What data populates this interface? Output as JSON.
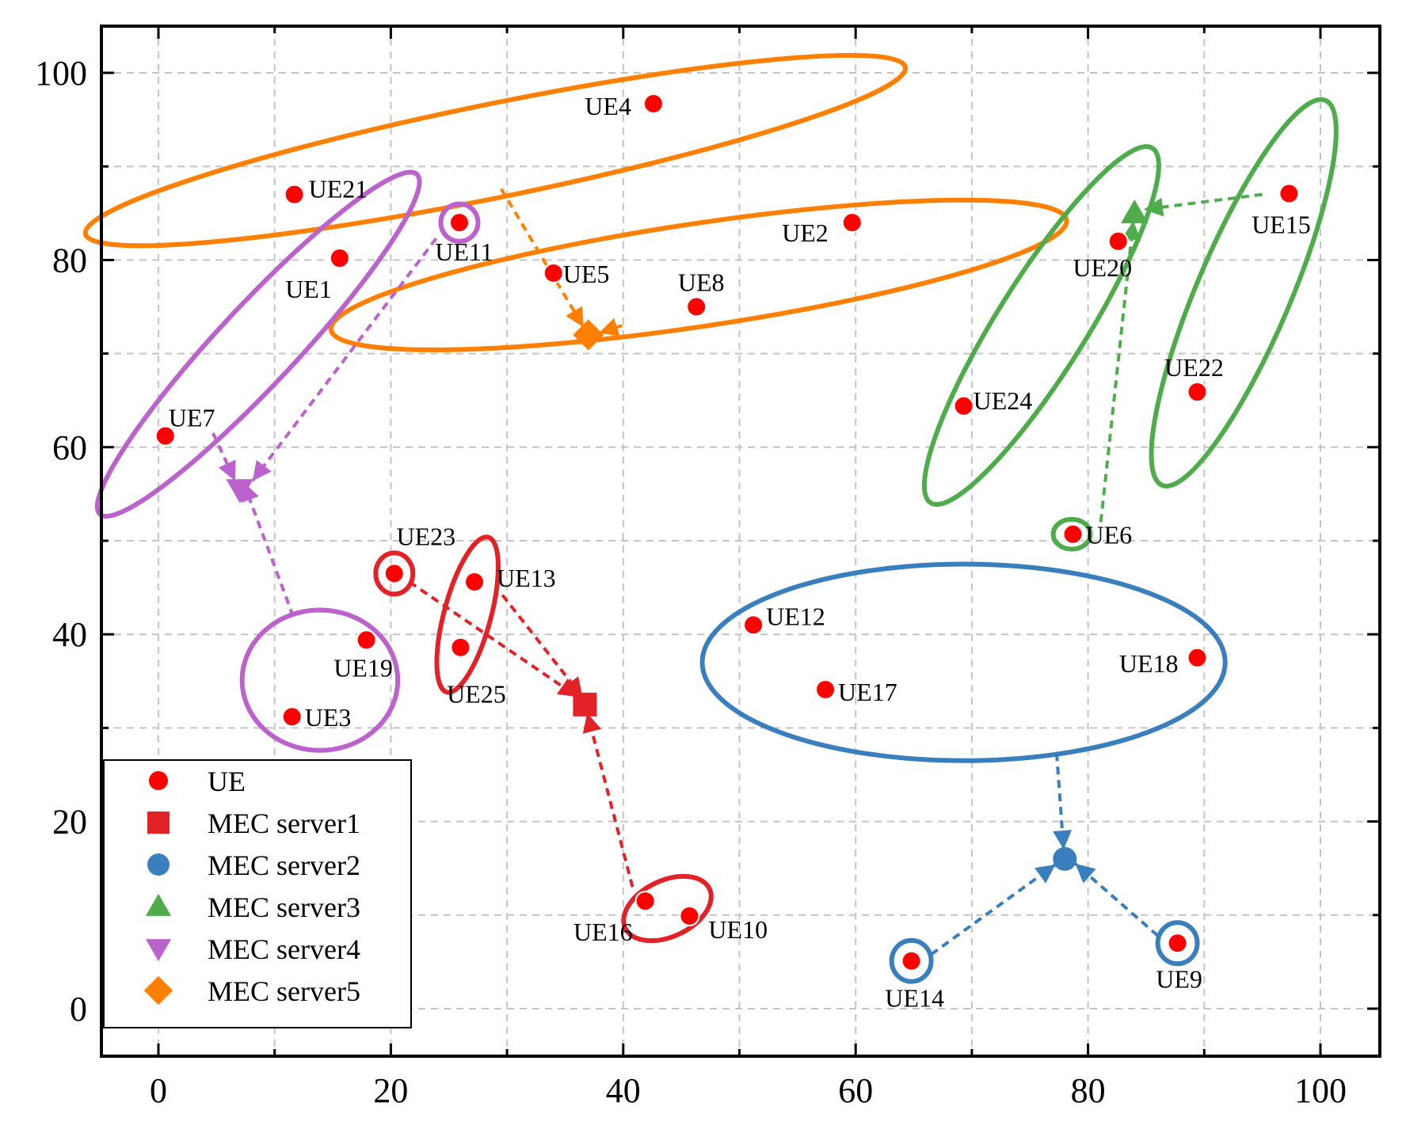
{
  "chart_data": {
    "type": "scatter",
    "title": "",
    "xlabel": "",
    "ylabel": "",
    "xlim": [
      -5,
      105
    ],
    "ylim": [
      -5,
      105
    ],
    "xticks": [
      0,
      20,
      40,
      60,
      80,
      100
    ],
    "yticks": [
      0,
      20,
      40,
      60,
      80,
      100
    ],
    "grid": true,
    "legend_position": "bottom-left",
    "colors": {
      "ue": "#ff0000",
      "server1": "#e32228",
      "server2": "#3a7fbd",
      "server3": "#4ead4a",
      "server4": "#bb62cc",
      "server5": "#ff8000"
    },
    "legend": [
      {
        "label": "UE",
        "marker": "circle",
        "color": "#ff0000"
      },
      {
        "label": "MEC server1",
        "marker": "square",
        "color": "#e32228"
      },
      {
        "label": "MEC server2",
        "marker": "circle",
        "color": "#3a7fbd"
      },
      {
        "label": "MEC server3",
        "marker": "triangle-up",
        "color": "#4ead4a"
      },
      {
        "label": "MEC server4",
        "marker": "triangle-down",
        "color": "#bb62cc"
      },
      {
        "label": "MEC server5",
        "marker": "diamond",
        "color": "#ff8000"
      }
    ],
    "ues": [
      {
        "name": "UE1",
        "x": 15.6,
        "y": 80.2,
        "server": 4
      },
      {
        "name": "UE2",
        "x": 59.7,
        "y": 84.0,
        "server": 5
      },
      {
        "name": "UE3",
        "x": 11.5,
        "y": 31.2,
        "server": 4
      },
      {
        "name": "UE4",
        "x": 42.6,
        "y": 96.7,
        "server": 5
      },
      {
        "name": "UE5",
        "x": 34.0,
        "y": 78.6,
        "server": 5
      },
      {
        "name": "UE6",
        "x": 78.7,
        "y": 50.7,
        "server": 3
      },
      {
        "name": "UE7",
        "x": 0.6,
        "y": 61.2,
        "server": 4
      },
      {
        "name": "UE8",
        "x": 46.3,
        "y": 75.0,
        "server": 5
      },
      {
        "name": "UE9",
        "x": 87.7,
        "y": 7.0,
        "server": 2
      },
      {
        "name": "UE10",
        "x": 45.7,
        "y": 9.9,
        "server": 1
      },
      {
        "name": "UE11",
        "x": 25.9,
        "y": 84.0,
        "server": 4
      },
      {
        "name": "UE12",
        "x": 51.2,
        "y": 41.0,
        "server": 2
      },
      {
        "name": "UE13",
        "x": 27.2,
        "y": 45.6,
        "server": 1
      },
      {
        "name": "UE14",
        "x": 64.8,
        "y": 5.1,
        "server": 2
      },
      {
        "name": "UE15",
        "x": 97.3,
        "y": 87.1,
        "server": 3
      },
      {
        "name": "UE16",
        "x": 41.9,
        "y": 11.5,
        "server": 1
      },
      {
        "name": "UE17",
        "x": 57.4,
        "y": 34.1,
        "server": 2
      },
      {
        "name": "UE18",
        "x": 89.4,
        "y": 37.5,
        "server": 2
      },
      {
        "name": "UE19",
        "x": 17.9,
        "y": 39.4,
        "server": 4
      },
      {
        "name": "UE20",
        "x": 82.6,
        "y": 82.0,
        "server": 3
      },
      {
        "name": "UE21",
        "x": 11.7,
        "y": 87.0,
        "server": 5
      },
      {
        "name": "UE22",
        "x": 89.4,
        "y": 65.9,
        "server": 3
      },
      {
        "name": "UE23",
        "x": 20.3,
        "y": 46.5,
        "server": 1
      },
      {
        "name": "UE24",
        "x": 69.3,
        "y": 64.4,
        "server": 3
      },
      {
        "name": "UE25",
        "x": 26.0,
        "y": 38.6,
        "server": 1
      }
    ],
    "servers": [
      {
        "id": 1,
        "label": "MEC server1",
        "x": 36.7,
        "y": 32.5,
        "marker": "square"
      },
      {
        "id": 2,
        "label": "MEC server2",
        "x": 78.0,
        "y": 16.0,
        "marker": "circle"
      },
      {
        "id": 3,
        "label": "MEC server3",
        "x": 84.0,
        "y": 85.0,
        "marker": "triangle-up"
      },
      {
        "id": 4,
        "label": "MEC server4",
        "x": 7.0,
        "y": 55.5,
        "marker": "triangle-down"
      },
      {
        "id": 5,
        "label": "MEC server5",
        "x": 37.0,
        "y": 72.0,
        "marker": "diamond"
      }
    ],
    "clusters": [
      {
        "server": 5,
        "members": [
          "UE21",
          "UE4"
        ],
        "cx": 29.0,
        "cy": 91.7,
        "rx": 36.0,
        "ry": 5.0,
        "angle": 11.5
      },
      {
        "server": 5,
        "members": [
          "UE5",
          "UE8",
          "UE2"
        ],
        "cx": 46.5,
        "cy": 78.4,
        "rx": 32.0,
        "ry": 5.5,
        "angle": 8.5
      },
      {
        "server": 4,
        "members": [
          "UE11"
        ],
        "cx": 25.9,
        "cy": 84.0,
        "rx": 1.6,
        "ry": 2.0,
        "angle": 0
      },
      {
        "server": 4,
        "members": [
          "UE1",
          "UE7"
        ],
        "cx": 8.6,
        "cy": 71.0,
        "rx": 20.0,
        "ry": 4.2,
        "angle": 47
      },
      {
        "server": 4,
        "members": [
          "UE19",
          "UE3"
        ],
        "cx": 13.9,
        "cy": 35.1,
        "rx": 6.7,
        "ry": 7.5,
        "angle": 0
      },
      {
        "server": 1,
        "members": [
          "UE23"
        ],
        "cx": 20.3,
        "cy": 46.5,
        "rx": 1.6,
        "ry": 2.2,
        "angle": 0
      },
      {
        "server": 1,
        "members": [
          "UE13",
          "UE25"
        ],
        "cx": 26.6,
        "cy": 42.1,
        "rx": 6.9,
        "ry": 2.5,
        "angle": 75
      },
      {
        "server": 1,
        "members": [
          "UE16",
          "UE10"
        ],
        "cx": 43.8,
        "cy": 10.7,
        "rx": 4.0,
        "ry": 3.0,
        "angle": 25
      },
      {
        "server": 2,
        "members": [
          "UE12",
          "UE17",
          "UE18"
        ],
        "cx": 69.3,
        "cy": 37.0,
        "rx": 22.5,
        "ry": 10.5,
        "angle": 0
      },
      {
        "server": 2,
        "members": [
          "UE14"
        ],
        "cx": 64.8,
        "cy": 5.1,
        "rx": 1.7,
        "ry": 2.2,
        "angle": 0
      },
      {
        "server": 2,
        "members": [
          "UE9"
        ],
        "cx": 87.7,
        "cy": 7.0,
        "rx": 1.7,
        "ry": 2.2,
        "angle": 0
      },
      {
        "server": 3,
        "members": [
          "UE20",
          "UE24"
        ],
        "cx": 76.0,
        "cy": 73.0,
        "rx": 18.0,
        "ry": 4.8,
        "angle": 58
      },
      {
        "server": 3,
        "members": [
          "UE15",
          "UE22"
        ],
        "cx": 93.4,
        "cy": 76.5,
        "rx": 18.0,
        "ry": 5.0,
        "angle": 67
      },
      {
        "server": 3,
        "members": [
          "UE6"
        ],
        "cx": 78.6,
        "cy": 50.7,
        "rx": 1.6,
        "ry": 1.6,
        "angle": 0
      }
    ],
    "links": [
      {
        "server": 5,
        "from": [
          29.5,
          87.6
        ],
        "to": [
          36.6,
          72.8
        ]
      },
      {
        "server": 5,
        "from": [
          39.9,
          73.0
        ],
        "to": [
          37.9,
          72.2
        ]
      },
      {
        "server": 4,
        "from": [
          23.9,
          82.3
        ],
        "to": [
          8.1,
          56.4
        ]
      },
      {
        "server": 4,
        "from": [
          4.7,
          61.5
        ],
        "to": [
          6.6,
          56.4
        ]
      },
      {
        "server": 4,
        "from": [
          11.6,
          41.9
        ],
        "to": [
          7.3,
          56.3
        ]
      },
      {
        "server": 1,
        "from": [
          21.6,
          45.6
        ],
        "to": [
          36.1,
          33.3
        ]
      },
      {
        "server": 1,
        "from": [
          29.6,
          44.2
        ],
        "to": [
          36.5,
          33.3
        ]
      },
      {
        "server": 1,
        "from": [
          40.8,
          13.0
        ],
        "to": [
          36.9,
          31.6
        ]
      },
      {
        "server": 2,
        "from": [
          77.3,
          27.3
        ],
        "to": [
          77.9,
          17.0
        ]
      },
      {
        "server": 2,
        "from": [
          66.5,
          5.8
        ],
        "to": [
          77.2,
          15.4
        ]
      },
      {
        "server": 2,
        "from": [
          86.0,
          7.8
        ],
        "to": [
          78.9,
          15.5
        ]
      },
      {
        "server": 3,
        "from": [
          81.1,
          52.0
        ],
        "to": [
          83.9,
          84.2
        ]
      },
      {
        "server": 3,
        "from": [
          95.0,
          87.0
        ],
        "to": [
          84.8,
          85.4
        ]
      }
    ]
  }
}
